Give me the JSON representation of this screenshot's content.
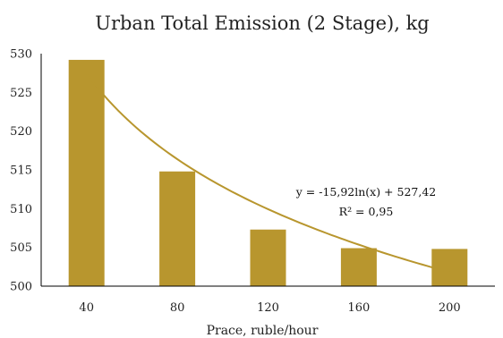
{
  "chart_data": {
    "type": "bar",
    "title": "Urban Total Emission (2 Stage), kg",
    "xlabel": "Prace, ruble/hour",
    "ylabel": "",
    "categories": [
      "40",
      "80",
      "120",
      "160",
      "200"
    ],
    "series": [
      {
        "values": [
          529.2,
          514.8,
          507.3,
          504.9,
          504.8
        ]
      }
    ],
    "ylim": [
      500,
      530
    ],
    "yticks": [
      "500",
      "505",
      "510",
      "515",
      "520",
      "525",
      "530"
    ],
    "trendline": {
      "type": "logarithmic",
      "coef_a": -15.92,
      "coef_b": 527.42,
      "equation_label": "y = -15,92ln(x) + 527,42",
      "r2_label": "R² = 0,95"
    },
    "grid": false,
    "legend": "none",
    "colors": {
      "bar": "#B8962E",
      "trendline": "#B8962E",
      "axis": "#000000"
    }
  }
}
